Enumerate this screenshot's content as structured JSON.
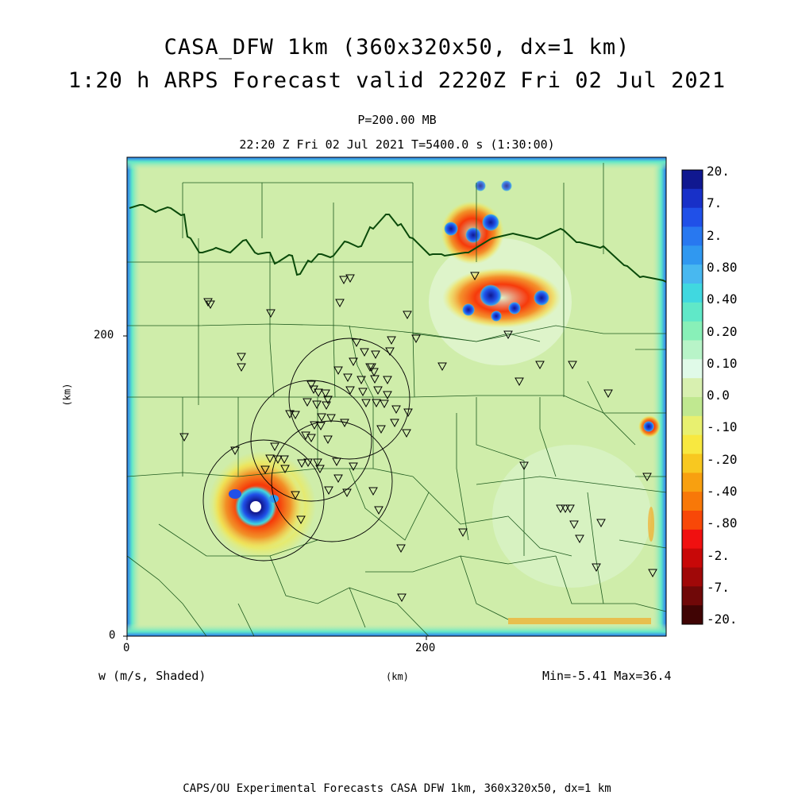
{
  "header": {
    "title_line1": "CASA_DFW 1km (360x320x50, dx=1 km)",
    "title_line2": "1:20 h ARPS Forecast valid 2220Z Fri 02 Jul 2021",
    "level": "P=200.00 MB",
    "valid_time": "22:20 Z Fri 02 Jul 2021    T=5400.0 s (1:30:00)"
  },
  "axes": {
    "y_ticks": [
      "200",
      "0"
    ],
    "x_ticks": [
      "0",
      "200"
    ],
    "y_label": "(km)",
    "x_label": "(km)"
  },
  "footer": {
    "variable": "w (m/s, Shaded)",
    "minmax": "Min=-5.41 Max=36.4",
    "credit": "CAPS/OU Experimental Forecasts  CASA DFW 1km, 360x320x50, dx=1 km"
  },
  "colorbar": {
    "labels": [
      "20.",
      "7.",
      "2.",
      "0.80",
      "0.40",
      "0.20",
      "0.10",
      "0.0",
      "-.10",
      "-.20",
      "-.40",
      "-.80",
      "-2.",
      "-7.",
      "-20."
    ],
    "colors": [
      "#101890",
      "#1830c8",
      "#2050e8",
      "#2878f0",
      "#3098f0",
      "#48b8f0",
      "#40d8e0",
      "#60e8c8",
      "#88f0b8",
      "#b8f4c8",
      "#e0fae8",
      "#d8f0b0",
      "#c0e890",
      "#e8f070",
      "#f8e840",
      "#f8c820",
      "#f8a010",
      "#f87808",
      "#f84808",
      "#f01010",
      "#c80808",
      "#a00808",
      "#700808",
      "#400404"
    ]
  },
  "map": {
    "background_color": "#cfedaa",
    "radar_count": 4,
    "station_count": 110
  }
}
